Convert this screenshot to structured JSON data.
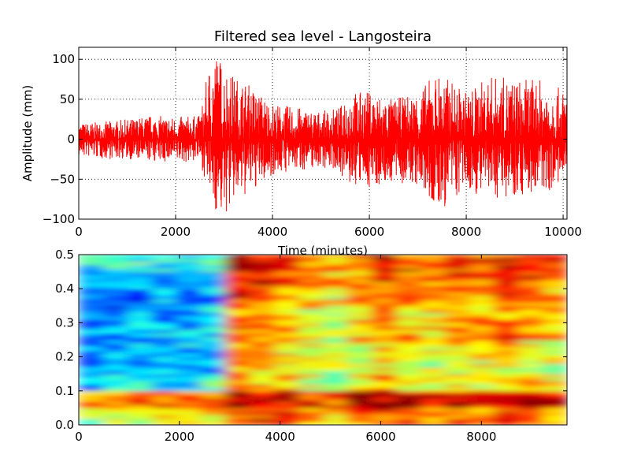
{
  "chart_data": [
    {
      "type": "line",
      "title": "Filtered sea level - Langosteira",
      "xlabel": "Time (minutes)",
      "ylabel": "Amplitude (mm)",
      "xlim": [
        0,
        10080
      ],
      "ylim": [
        -100,
        115
      ],
      "xticks": [
        0,
        2000,
        4000,
        6000,
        8000,
        10000
      ],
      "yticks": [
        -100,
        -50,
        0,
        50,
        100
      ],
      "xtick_labels": [
        "0",
        "2000",
        "4000",
        "6000",
        "8000",
        "10000"
      ],
      "ytick_labels": [
        "−100",
        "−50",
        "0",
        "50",
        "100"
      ],
      "grid": true,
      "line_color": "#ff0000",
      "series": [
        {
          "x": [
            0,
            500,
            1000,
            1500,
            2000,
            2500,
            2700,
            2800,
            3000,
            3200,
            3500,
            4000,
            4500,
            5000,
            5400,
            5500,
            6000,
            6500,
            7000,
            7400,
            8000,
            8500,
            9000,
            9500,
            10080
          ],
          "envelope_max": [
            20,
            22,
            25,
            30,
            28,
            30,
            95,
            115,
            95,
            80,
            70,
            45,
            40,
            35,
            40,
            60,
            60,
            50,
            60,
            85,
            60,
            80,
            75,
            75,
            60
          ],
          "envelope_min": [
            -22,
            -25,
            -25,
            -28,
            -30,
            -28,
            -70,
            -90,
            -100,
            -80,
            -70,
            -45,
            -40,
            -35,
            -40,
            -60,
            -60,
            -55,
            -60,
            -95,
            -65,
            -75,
            -70,
            -70,
            -55
          ]
        }
      ]
    },
    {
      "type": "heatmap",
      "colormap": "jet",
      "xlim": [
        0,
        9700
      ],
      "ylim": [
        0,
        0.5
      ],
      "xticks": [
        0,
        2000,
        4000,
        6000,
        8000
      ],
      "yticks": [
        0,
        0.1,
        0.2,
        0.3,
        0.4,
        0.5
      ],
      "xtick_labels": [
        "0",
        "2000",
        "4000",
        "6000",
        "8000"
      ],
      "ytick_labels": [
        "0.0",
        "0.1",
        "0.2",
        "0.3",
        "0.4",
        "0.5"
      ],
      "x_bins": [
        0,
        500,
        1000,
        1500,
        2000,
        2500,
        3000,
        3500,
        4000,
        4500,
        5000,
        5500,
        6000,
        6500,
        7000,
        7500,
        8000,
        8500,
        9000,
        9500
      ],
      "y_bins": [
        0.025,
        0.075,
        0.125,
        0.175,
        0.225,
        0.275,
        0.325,
        0.375,
        0.425,
        0.475
      ],
      "values": [
        [
          0.55,
          0.6,
          0.58,
          0.62,
          0.6,
          0.65,
          0.85,
          0.85,
          0.8,
          0.75,
          0.7,
          0.78,
          0.82,
          0.78,
          0.75,
          0.8,
          0.75,
          0.8,
          0.78,
          0.72
        ],
        [
          0.75,
          0.78,
          0.8,
          0.82,
          0.8,
          0.82,
          0.95,
          0.92,
          0.9,
          0.85,
          0.82,
          0.9,
          0.95,
          0.92,
          0.88,
          0.9,
          0.88,
          0.92,
          0.9,
          0.85
        ],
        [
          0.3,
          0.35,
          0.4,
          0.35,
          0.4,
          0.4,
          0.72,
          0.7,
          0.65,
          0.6,
          0.55,
          0.65,
          0.7,
          0.65,
          0.6,
          0.65,
          0.62,
          0.68,
          0.65,
          0.62
        ],
        [
          0.25,
          0.3,
          0.25,
          0.28,
          0.3,
          0.3,
          0.7,
          0.68,
          0.65,
          0.58,
          0.52,
          0.6,
          0.65,
          0.6,
          0.58,
          0.62,
          0.6,
          0.65,
          0.62,
          0.58
        ],
        [
          0.25,
          0.28,
          0.3,
          0.28,
          0.32,
          0.3,
          0.72,
          0.7,
          0.65,
          0.6,
          0.55,
          0.62,
          0.68,
          0.62,
          0.6,
          0.65,
          0.62,
          0.66,
          0.64,
          0.6
        ],
        [
          0.28,
          0.3,
          0.32,
          0.3,
          0.3,
          0.32,
          0.8,
          0.78,
          0.72,
          0.66,
          0.6,
          0.7,
          0.78,
          0.7,
          0.68,
          0.72,
          0.75,
          0.8,
          0.76,
          0.7
        ],
        [
          0.25,
          0.22,
          0.28,
          0.25,
          0.28,
          0.3,
          0.75,
          0.72,
          0.7,
          0.62,
          0.58,
          0.66,
          0.72,
          0.68,
          0.64,
          0.7,
          0.68,
          0.72,
          0.7,
          0.66
        ],
        [
          0.22,
          0.25,
          0.22,
          0.28,
          0.25,
          0.28,
          0.85,
          0.8,
          0.75,
          0.68,
          0.62,
          0.7,
          0.78,
          0.72,
          0.7,
          0.76,
          0.74,
          0.8,
          0.76,
          0.72
        ],
        [
          0.3,
          0.28,
          0.32,
          0.3,
          0.32,
          0.35,
          0.9,
          0.88,
          0.8,
          0.72,
          0.68,
          0.74,
          0.82,
          0.78,
          0.76,
          0.82,
          0.8,
          0.88,
          0.84,
          0.78
        ],
        [
          0.35,
          0.38,
          0.4,
          0.38,
          0.42,
          0.45,
          0.95,
          0.9,
          0.85,
          0.78,
          0.72,
          0.8,
          0.88,
          0.82,
          0.8,
          0.85,
          0.82,
          0.9,
          0.88,
          0.82
        ]
      ]
    }
  ]
}
